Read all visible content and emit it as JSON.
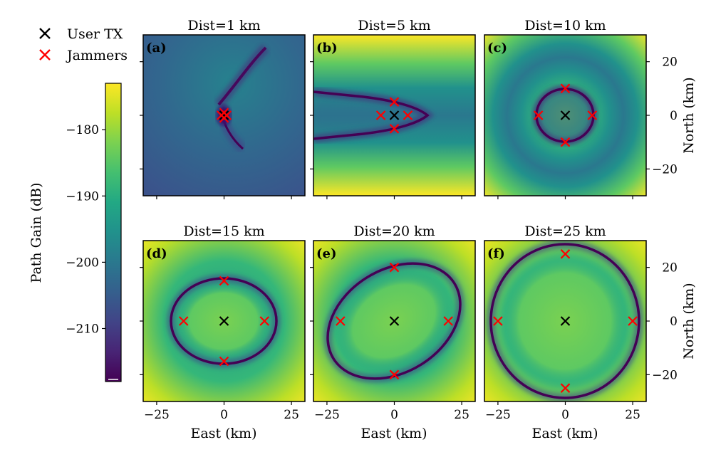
{
  "legend": [
    {
      "label": "User TX",
      "color": "#000000"
    },
    {
      "label": "Jammers",
      "color": "#ff0000"
    }
  ],
  "colorbar": {
    "label": "Path Gain (dB)",
    "ticks": [
      -180,
      -190,
      -200,
      -210
    ],
    "range": [
      -218,
      -173
    ],
    "colormap": "viridis"
  },
  "axes": {
    "xlabel": "East (km)",
    "ylabel": "North (km)",
    "xticks": [
      -25,
      0,
      25
    ],
    "yticks": [
      -20,
      0,
      20
    ],
    "xlim": [
      -30,
      30
    ],
    "ylim": [
      -30,
      30
    ]
  },
  "chart_data": {
    "type": "heatmap",
    "panels": [
      {
        "tag": "(a)",
        "title": "Dist=1 km",
        "user_tx": [
          0,
          0
        ],
        "jammers": [
          [
            1,
            0
          ],
          [
            0,
            1
          ],
          [
            -1,
            0
          ],
          [
            0,
            -1
          ]
        ],
        "null_curve": "parabolic arc opening up-right"
      },
      {
        "tag": "(b)",
        "title": "Dist=5 km",
        "user_tx": [
          0,
          0
        ],
        "jammers": [
          [
            5,
            0
          ],
          [
            0,
            5
          ],
          [
            -5,
            0
          ],
          [
            0,
            -5
          ]
        ],
        "null_curve": "parabola opening left"
      },
      {
        "tag": "(c)",
        "title": "Dist=10 km",
        "user_tx": [
          0,
          0
        ],
        "jammers": [
          [
            10,
            0
          ],
          [
            0,
            10
          ],
          [
            -10,
            0
          ],
          [
            0,
            -10
          ]
        ],
        "null_curve": "ellipse"
      },
      {
        "tag": "(d)",
        "title": "Dist=15 km",
        "user_tx": [
          0,
          0
        ],
        "jammers": [
          [
            15,
            0
          ],
          [
            0,
            15
          ],
          [
            -15,
            0
          ],
          [
            0,
            -15
          ]
        ],
        "null_curve": "ellipse"
      },
      {
        "tag": "(e)",
        "title": "Dist=20 km",
        "user_tx": [
          0,
          0
        ],
        "jammers": [
          [
            20,
            0
          ],
          [
            0,
            20
          ],
          [
            -20,
            0
          ],
          [
            0,
            -20
          ]
        ],
        "null_curve": "tilted ellipse"
      },
      {
        "tag": "(f)",
        "title": "Dist=25 km",
        "user_tx": [
          0,
          0
        ],
        "jammers": [
          [
            25,
            0
          ],
          [
            0,
            25
          ],
          [
            -25,
            0
          ],
          [
            0,
            -25
          ]
        ],
        "null_curve": "ellipse"
      }
    ]
  }
}
